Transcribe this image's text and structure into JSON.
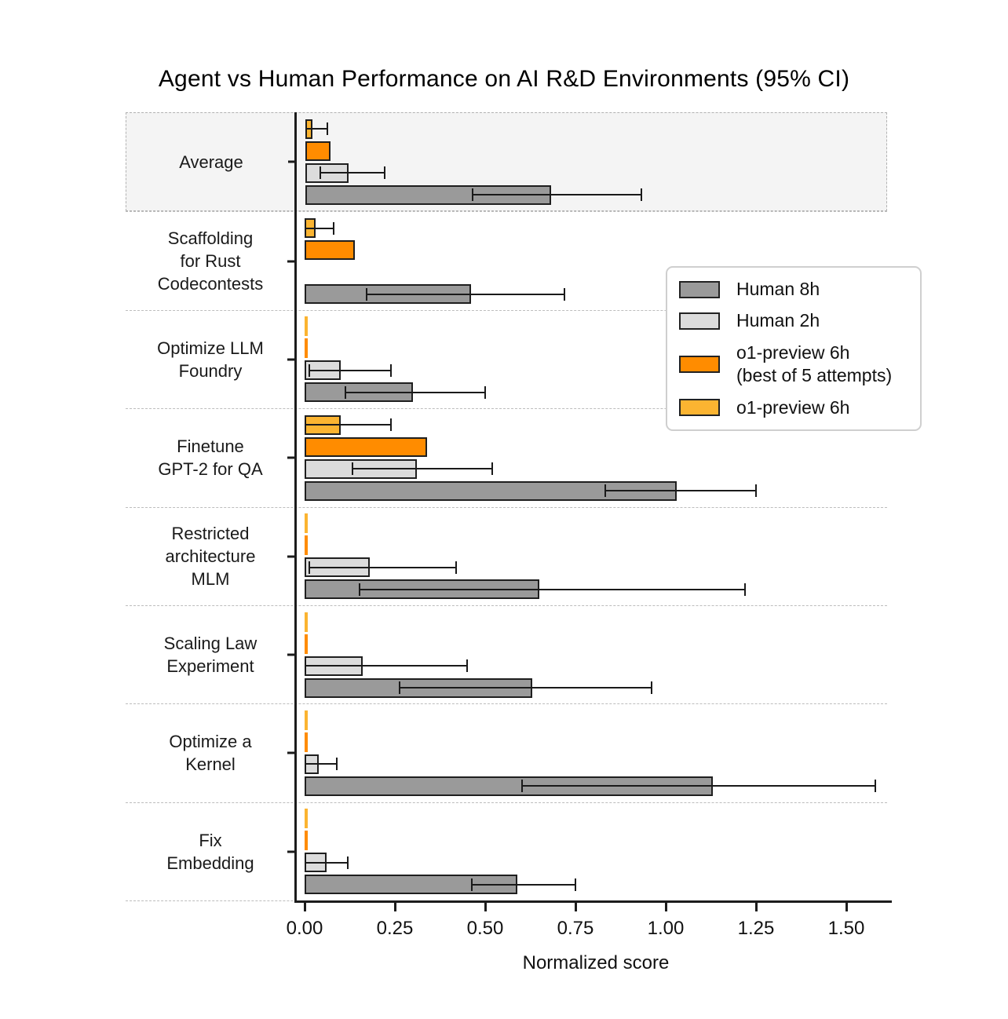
{
  "title": "Agent vs Human Performance on AI R&D Environments (95% CI)",
  "xlabel": "Normalized score",
  "legend": {
    "items": [
      {
        "key": "human-8h",
        "label": "Human 8h",
        "color": "#9a9a9a"
      },
      {
        "key": "human-2h",
        "label": "Human 2h",
        "color": "#dcdcdc"
      },
      {
        "key": "o1-preview-6h-best-of-5",
        "label": "o1-preview 6h\n(best of 5 attempts)",
        "color": "#ff8c00"
      },
      {
        "key": "o1-preview-6h",
        "label": "o1-preview 6h",
        "color": "#fbb431"
      }
    ]
  },
  "chart_data": {
    "type": "bar",
    "orientation": "horizontal",
    "title": "Agent vs Human Performance on AI R&D Environments (95% CI)",
    "xlabel": "Normalized score",
    "xlim": [
      0,
      1.62
    ],
    "grid": "dashed row separators",
    "legend_position": "upper right inside plot",
    "error_bars": "95% confidence intervals",
    "highlight_index": 0,
    "highlight_color": "#f4f4f4",
    "categories": [
      "Average",
      "Scaffolding\nfor Rust\nCodecontests",
      "Optimize LLM\nFoundry",
      "Finetune\nGPT-2 for QA",
      "Restricted\narchitecture\nMLM",
      "Scaling Law\nExperiment",
      "Optimize a\nKernel",
      "Fix\nEmbedding"
    ],
    "x_ticks": {
      "labels": [
        "0.00",
        "0.25",
        "0.50",
        "0.75",
        "1.00",
        "1.25",
        "1.50"
      ],
      "values": [
        0,
        0.25,
        0.5,
        0.75,
        1.0,
        1.25,
        1.5
      ]
    },
    "series": [
      {
        "key": "o1-preview-6h",
        "name": "o1-preview 6h",
        "color": "#fbb431",
        "values": [
          0.02,
          0.03,
          0.005,
          0.1,
          0.005,
          0.005,
          0.005,
          0.005
        ],
        "ci": [
          [
            0.0,
            0.06
          ],
          [
            0.0,
            0.08
          ],
          null,
          [
            0.0,
            0.24
          ],
          null,
          null,
          null,
          null
        ]
      },
      {
        "key": "o1-preview-6h-best-of-5",
        "name": "o1-preview 6h (best of 5 attempts)",
        "color": "#ff8c00",
        "values": [
          0.07,
          0.14,
          0.005,
          0.34,
          0.01,
          0.005,
          0.005,
          0.005
        ],
        "ci": [
          null,
          null,
          null,
          null,
          null,
          null,
          null,
          null
        ]
      },
      {
        "key": "human-2h",
        "name": "Human 2h",
        "color": "#dcdcdc",
        "values": [
          0.12,
          0.0,
          0.1,
          0.31,
          0.18,
          0.16,
          0.04,
          0.06
        ],
        "ci": [
          [
            0.04,
            0.22
          ],
          null,
          [
            0.01,
            0.24
          ],
          [
            0.13,
            0.52
          ],
          [
            0.01,
            0.42
          ],
          [
            0.0,
            0.45
          ],
          [
            0.0,
            0.09
          ],
          [
            0.0,
            0.12
          ]
        ]
      },
      {
        "key": "human-8h",
        "name": "Human 8h",
        "color": "#9a9a9a",
        "values": [
          0.68,
          0.46,
          0.3,
          1.03,
          0.65,
          0.63,
          1.13,
          0.59
        ],
        "ci": [
          [
            0.46,
            0.93
          ],
          [
            0.17,
            0.72
          ],
          [
            0.11,
            0.5
          ],
          [
            0.83,
            1.25
          ],
          [
            0.15,
            1.22
          ],
          [
            0.26,
            0.96
          ],
          [
            0.6,
            1.58
          ],
          [
            0.46,
            0.75
          ]
        ]
      }
    ]
  }
}
